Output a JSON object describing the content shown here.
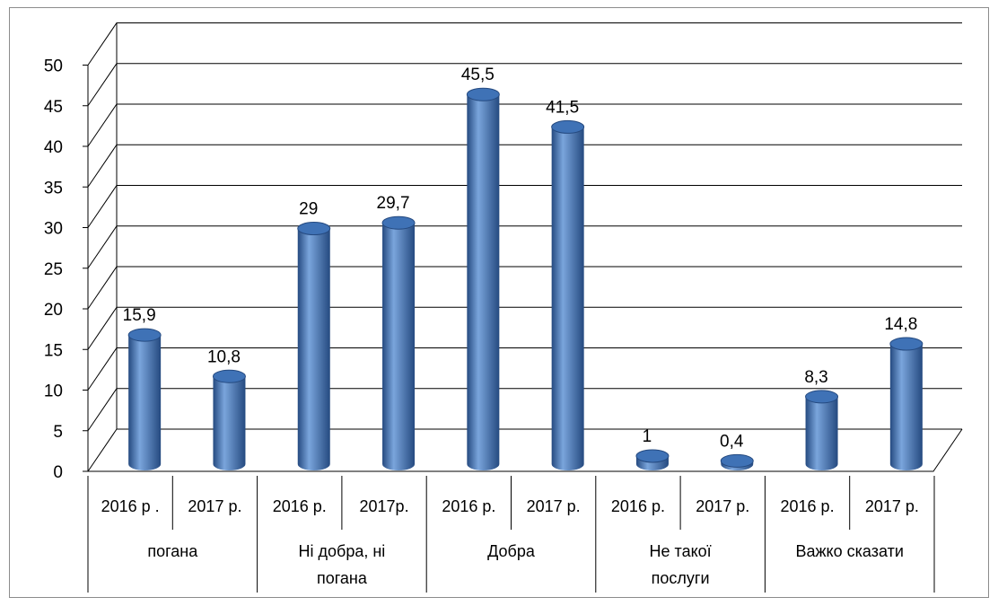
{
  "chart_data": {
    "type": "bar",
    "style": "3d-cylinder",
    "grid": true,
    "legend": "none",
    "colors": {
      "bar": "#3f72b6",
      "bar_light": "#7aa5dc",
      "bar_dark": "#254a80",
      "grid": "#000000"
    },
    "ylim": [
      0,
      50
    ],
    "yticks": [
      "0",
      "5",
      "10",
      "15",
      "20",
      "25",
      "30",
      "35",
      "40",
      "45",
      "50"
    ],
    "categories": [
      "2016 р .",
      "2017 р.",
      "2016 р.",
      "2017р.",
      "2016 р.",
      "2017 р.",
      "2016 р.",
      "2017 р.",
      "2016 р.",
      "2017 р."
    ],
    "values": [
      15.9,
      10.8,
      29,
      29.7,
      45.5,
      41.5,
      1,
      0.4,
      8.3,
      14.8
    ],
    "data_labels": [
      "15,9",
      "10,8",
      "29",
      "29,7",
      "45,5",
      "41,5",
      "1",
      "0,4",
      "8,3",
      "14,8"
    ],
    "groups": [
      {
        "label_lines": [
          "погана"
        ]
      },
      {
        "label_lines": [
          "Ні добра, ні",
          "погана"
        ]
      },
      {
        "label_lines": [
          "Добра"
        ]
      },
      {
        "label_lines": [
          "Не такої",
          "послуги"
        ]
      },
      {
        "label_lines": [
          "Важко сказати"
        ]
      }
    ]
  }
}
